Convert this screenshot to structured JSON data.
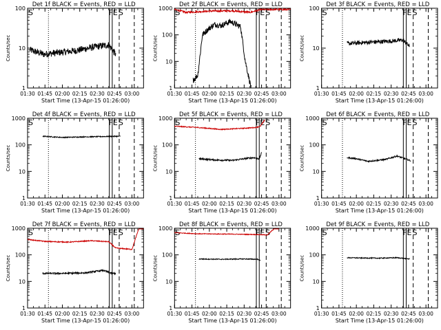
{
  "chart_data": {
    "type": "line",
    "x_tick_labels": [
      "01:30",
      "01:45",
      "02:00",
      "02:15",
      "02:30",
      "02:45",
      "03:00"
    ],
    "x_ticks_minutes": [
      90,
      105,
      120,
      135,
      150,
      165,
      180
    ],
    "xlim_minutes": [
      90,
      190
    ],
    "ylabel": "Counts/sec",
    "xlabel": "Start Time (13-Apr-15 01:26:00)",
    "scale_y": "log",
    "marker_letters": {
      "start": "S",
      "flare": "F",
      "end_e": "E",
      "end_s": "S"
    },
    "marker_lines_minutes": {
      "dotted": 108,
      "solid": [
        160.5,
        163
      ],
      "dashed": [
        169,
        182
      ]
    },
    "panels": [
      {
        "title": "Det 1f BLACK = Events, RED = LLD",
        "ylim": [
          1,
          100
        ],
        "y_ticks": [
          1,
          10,
          100
        ],
        "y_tick_labels": [
          "1",
          "10",
          "100"
        ],
        "series": [
          {
            "color": "#000000",
            "x_start": 92,
            "x_end": 166,
            "base": 9,
            "trend": [
              [
                92,
                9
              ],
              [
                104,
                7
              ],
              [
                112,
                7.5
              ],
              [
                130,
                8.5
              ],
              [
                150,
                11
              ],
              [
                160,
                12
              ],
              [
                166,
                7
              ]
            ],
            "noise": 0.2
          }
        ]
      },
      {
        "title": "Det 2f BLACK = Events, RED = LLD",
        "ylim": [
          1,
          1000
        ],
        "y_ticks": [
          1,
          10,
          100,
          1000
        ],
        "y_tick_labels": [
          "1",
          "10",
          "100",
          "1000"
        ],
        "series": [
          {
            "color": "#cc0000",
            "x_start": 90,
            "x_end": 190,
            "trend": [
              [
                90,
                900
              ],
              [
                100,
                700
              ],
              [
                120,
                780
              ],
              [
                140,
                800
              ],
              [
                155,
                700
              ],
              [
                165,
                900
              ],
              [
                190,
                900
              ]
            ],
            "noise": 0.08
          },
          {
            "color": "#000000",
            "x_start": 106,
            "x_end": 156,
            "trend": [
              [
                106,
                2
              ],
              [
                110,
                3
              ],
              [
                114,
                100
              ],
              [
                120,
                180
              ],
              [
                125,
                250
              ],
              [
                130,
                220
              ],
              [
                138,
                320
              ],
              [
                142,
                260
              ],
              [
                147,
                200
              ],
              [
                151,
                10
              ],
              [
                156,
                1
              ]
            ],
            "noise": 0.25
          }
        ]
      },
      {
        "title": "Det 3f BLACK = Events, RED = LLD",
        "ylim": [
          1,
          100
        ],
        "y_ticks": [
          1,
          10,
          100
        ],
        "y_tick_labels": [
          "1",
          "10",
          "100"
        ],
        "series": [
          {
            "color": "#000000",
            "x_start": 112,
            "x_end": 166,
            "trend": [
              [
                112,
                13
              ],
              [
                130,
                14
              ],
              [
                150,
                15
              ],
              [
                160,
                16
              ],
              [
                166,
                11
              ]
            ],
            "noise": 0.12
          }
        ]
      },
      {
        "title": "Det 4f BLACK = Events, RED = LLD",
        "ylim": [
          1,
          1000
        ],
        "y_ticks": [
          1,
          10,
          100,
          1000
        ],
        "y_tick_labels": [
          "1",
          "10",
          "100",
          "1000"
        ],
        "series": [
          {
            "color": "#000000",
            "x_start": 103,
            "x_end": 170,
            "trend": [
              [
                103,
                210
              ],
              [
                120,
                190
              ],
              [
                140,
                200
              ],
              [
                170,
                210
              ]
            ],
            "noise": 0.04
          }
        ]
      },
      {
        "title": "Det 5f BLACK = Events, RED = LLD",
        "ylim": [
          1,
          1000
        ],
        "y_ticks": [
          1,
          10,
          100,
          1000
        ],
        "y_tick_labels": [
          "1",
          "10",
          "100",
          "1000"
        ],
        "series": [
          {
            "color": "#cc0000",
            "x_start": 90,
            "x_end": 168,
            "trend": [
              [
                90,
                500
              ],
              [
                110,
                450
              ],
              [
                130,
                380
              ],
              [
                150,
                420
              ],
              [
                160,
                450
              ],
              [
                164,
                500
              ],
              [
                168,
                900
              ]
            ],
            "noise": 0.04
          },
          {
            "color": "#000000",
            "x_start": 111,
            "x_end": 165,
            "trend": [
              [
                111,
                30
              ],
              [
                125,
                27
              ],
              [
                140,
                26
              ],
              [
                150,
                30
              ],
              [
                158,
                33
              ],
              [
                163,
                30
              ],
              [
                165,
                50
              ]
            ],
            "noise": 0.07
          }
        ]
      },
      {
        "title": "Det 6f BLACK = Events, RED = LLD",
        "ylim": [
          1,
          1000
        ],
        "y_ticks": [
          1,
          10,
          100,
          1000
        ],
        "y_tick_labels": [
          "1",
          "10",
          "100",
          "1000"
        ],
        "series": [
          {
            "color": "#000000",
            "x_start": 112,
            "x_end": 167,
            "trend": [
              [
                112,
                33
              ],
              [
                120,
                30
              ],
              [
                130,
                24
              ],
              [
                145,
                28
              ],
              [
                155,
                38
              ],
              [
                162,
                30
              ],
              [
                167,
                25
              ]
            ],
            "noise": 0.06
          }
        ]
      },
      {
        "title": "Det 7f BLACK = Events, RED = LLD",
        "ylim": [
          1,
          1000
        ],
        "y_ticks": [
          1,
          10,
          100,
          1000
        ],
        "y_tick_labels": [
          "1",
          "10",
          "100",
          "1000"
        ],
        "series": [
          {
            "color": "#cc0000",
            "x_start": 90,
            "x_end": 190,
            "trend": [
              [
                90,
                380
              ],
              [
                105,
                320
              ],
              [
                125,
                300
              ],
              [
                145,
                340
              ],
              [
                160,
                310
              ],
              [
                166,
                180
              ],
              [
                180,
                160
              ],
              [
                186,
                1000
              ]
            ],
            "noise": 0.04
          },
          {
            "color": "#000000",
            "x_start": 103,
            "x_end": 166,
            "trend": [
              [
                103,
                20
              ],
              [
                120,
                20
              ],
              [
                140,
                21
              ],
              [
                155,
                26
              ],
              [
                163,
                20
              ],
              [
                166,
                20
              ]
            ],
            "noise": 0.07
          }
        ]
      },
      {
        "title": "Det 8f BLACK = Events, RED = LLD",
        "ylim": [
          1,
          1000
        ],
        "y_ticks": [
          1,
          10,
          100,
          1000
        ],
        "y_tick_labels": [
          "1",
          "10",
          "100",
          "1000"
        ],
        "series": [
          {
            "color": "#cc0000",
            "x_start": 90,
            "x_end": 180,
            "trend": [
              [
                90,
                680
              ],
              [
                110,
                620
              ],
              [
                140,
                600
              ],
              [
                160,
                580
              ],
              [
                170,
                560
              ],
              [
                176,
                980
              ]
            ],
            "noise": 0.03
          },
          {
            "color": "#000000",
            "x_start": 111,
            "x_end": 164,
            "trend": [
              [
                111,
                70
              ],
              [
                130,
                68
              ],
              [
                150,
                70
              ],
              [
                162,
                68
              ],
              [
                164,
                60
              ]
            ],
            "noise": 0.04
          }
        ]
      },
      {
        "title": "Det 9f BLACK = Events, RED = LLD",
        "ylim": [
          1,
          1000
        ],
        "y_ticks": [
          1,
          10,
          100,
          1000
        ],
        "y_tick_labels": [
          "1",
          "10",
          "100",
          "1000"
        ],
        "series": [
          {
            "color": "#000000",
            "x_start": 112,
            "x_end": 166,
            "trend": [
              [
                112,
                78
              ],
              [
                125,
                76
              ],
              [
                140,
                75
              ],
              [
                155,
                78
              ],
              [
                163,
                72
              ],
              [
                166,
                70
              ]
            ],
            "noise": 0.04
          }
        ]
      }
    ]
  }
}
